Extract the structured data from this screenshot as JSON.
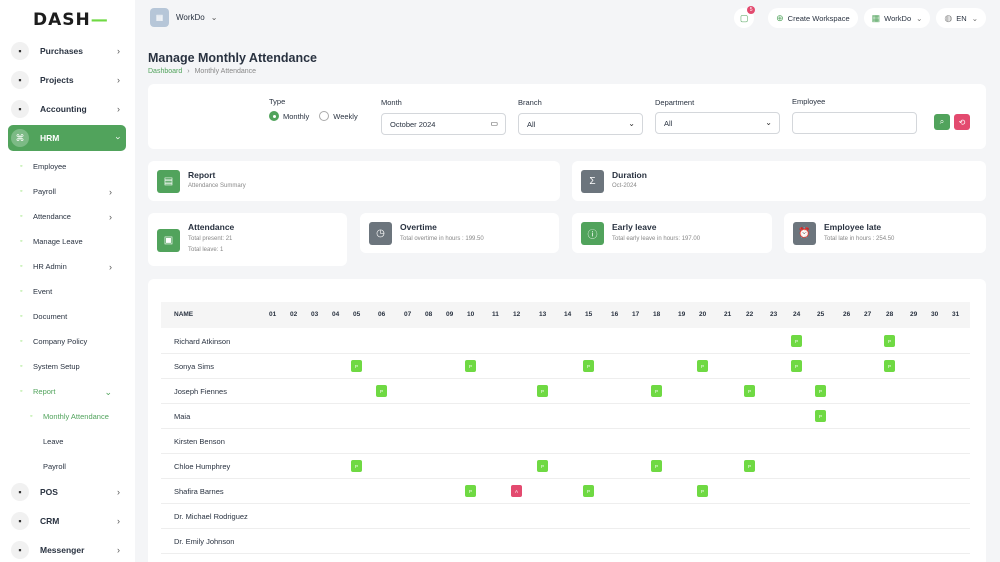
{
  "app": {
    "logo_main": "DASH",
    "workspace": "WorkDo"
  },
  "sidebar": {
    "items": [
      {
        "label": "Purchases",
        "icon": "cart-icon"
      },
      {
        "label": "Projects",
        "icon": "checkbox-icon"
      },
      {
        "label": "Accounting",
        "icon": "grid-icon"
      },
      {
        "label": "HRM",
        "icon": "network-icon",
        "active": true
      }
    ],
    "hrm_children": [
      {
        "label": "Employee",
        "has_children": false
      },
      {
        "label": "Payroll",
        "has_children": true
      },
      {
        "label": "Attendance",
        "has_children": true
      },
      {
        "label": "Manage Leave",
        "has_children": false
      },
      {
        "label": "HR Admin",
        "has_children": true
      },
      {
        "label": "Event",
        "has_children": false
      },
      {
        "label": "Document",
        "has_children": false
      },
      {
        "label": "Company Policy",
        "has_children": false
      },
      {
        "label": "System Setup",
        "has_children": false
      },
      {
        "label": "Report",
        "has_children": true
      }
    ],
    "report_children": [
      "Monthly Attendance",
      "Leave",
      "Payroll"
    ],
    "bottom_items": [
      {
        "label": "POS",
        "icon": "dots-grid-icon"
      },
      {
        "label": "CRM",
        "icon": "layers-icon"
      },
      {
        "label": "Messenger",
        "icon": "chat-icon"
      }
    ]
  },
  "header": {
    "notification_count": "5",
    "create_workspace": "Create Workspace",
    "workspace_select": "WorkDo",
    "language": "EN"
  },
  "page": {
    "title": "Manage Monthly Attendance",
    "breadcrumb": [
      "Dashboard",
      "Monthly Attendance"
    ]
  },
  "filters": {
    "type_label": "Type",
    "type_options": [
      "Monthly",
      "Weekly"
    ],
    "type_selected": "Monthly",
    "month_label": "Month",
    "month_value": "October 2024",
    "branch_label": "Branch",
    "branch_value": "All",
    "department_label": "Department",
    "department_value": "All",
    "employee_label": "Employee",
    "employee_value": ""
  },
  "summary": {
    "report": {
      "title": "Report",
      "sub": "Attendance Summary"
    },
    "duration": {
      "title": "Duration",
      "sub": "Oct-2024"
    },
    "attendance": {
      "title": "Attendance",
      "sub1": "Total present: 21",
      "sub2": "Total leave: 1"
    },
    "overtime": {
      "title": "Overtime",
      "sub": "Total overtime in hours : 199.50"
    },
    "early_leave": {
      "title": "Early leave",
      "sub": "Total early leave in hours: 197.00"
    },
    "employee_late": {
      "title": "Employee late",
      "sub": "Total late in hours : 254.50"
    }
  },
  "table": {
    "name_header": "NAME",
    "days": [
      "01",
      "02",
      "03",
      "04",
      "05",
      "06",
      "07",
      "08",
      "09",
      "10",
      "11",
      "12",
      "13",
      "14",
      "15",
      "16",
      "17",
      "18",
      "19",
      "20",
      "21",
      "22",
      "23",
      "24",
      "25",
      "26",
      "27",
      "28",
      "29",
      "30",
      "31"
    ],
    "rows": [
      {
        "name": "Richard Atkinson",
        "marks": {
          "24": "P",
          "28": "P"
        }
      },
      {
        "name": "Sonya Sims",
        "marks": {
          "05": "P",
          "10": "P",
          "15": "P",
          "20": "P",
          "24": "P",
          "28": "P"
        }
      },
      {
        "name": "Joseph Fiennes",
        "marks": {
          "06": "P",
          "13": "P",
          "18": "P",
          "22": "P",
          "25": "P"
        }
      },
      {
        "name": "Maia",
        "marks": {
          "25": "P"
        }
      },
      {
        "name": "Kirsten Benson",
        "marks": {}
      },
      {
        "name": "Chloe Humphrey",
        "marks": {
          "05": "P",
          "13": "P",
          "18": "P",
          "22": "P"
        }
      },
      {
        "name": "Shafira Barnes",
        "marks": {
          "10": "P",
          "12": "A",
          "15": "P",
          "20": "P"
        }
      },
      {
        "name": "Dr. Michael Rodriguez",
        "marks": {}
      },
      {
        "name": "Dr. Emily Johnson",
        "marks": {}
      }
    ]
  },
  "colors": {
    "accent": "#51a35c",
    "present": "#6fd943",
    "absent": "#e34a6f"
  }
}
